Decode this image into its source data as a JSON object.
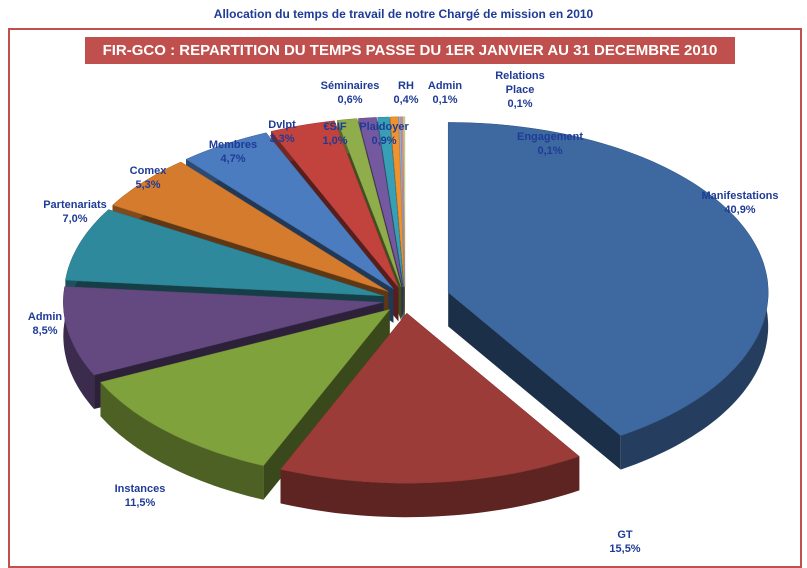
{
  "chart_data": {
    "type": "pie",
    "page_title": "Allocation du temps de travail de notre Chargé de mission en 2010",
    "title": "FIR-GCO : REPARTITION DU TEMPS PASSE DU 1ER JANVIER AU 31 DECEMBRE 2010",
    "categories": [
      "Manifestations",
      "GT",
      "Instances",
      "Admin",
      "Partenariats",
      "Comex",
      "Membres",
      "Dvlpt",
      "€SIF",
      "Plaidoyer",
      "Séminaires",
      "RH",
      "Admin",
      "Relations Place",
      "Engagement"
    ],
    "values": [
      40.9,
      15.5,
      11.5,
      8.5,
      7.0,
      5.3,
      4.7,
      3.3,
      1.0,
      0.9,
      0.6,
      0.4,
      0.1,
      0.1,
      0.1
    ],
    "value_labels": [
      "40,9%",
      "15,5%",
      "11,5%",
      "8,5%",
      "7,0%",
      "5,3%",
      "4,7%",
      "3,3%",
      "1,0%",
      "0,9%",
      "0,6%",
      "0,4%",
      "0,1%",
      "0,1%",
      "0,1%"
    ],
    "colors": [
      "#3d68a0",
      "#9c3c39",
      "#80a23c",
      "#634980",
      "#2f899c",
      "#d57b2d",
      "#4a7cbf",
      "#c2423d",
      "#8fae4b",
      "#7559a0",
      "#37a0b7",
      "#f0922e",
      "#8cb0e0",
      "#e08c8a",
      "#c6d98f"
    ]
  }
}
